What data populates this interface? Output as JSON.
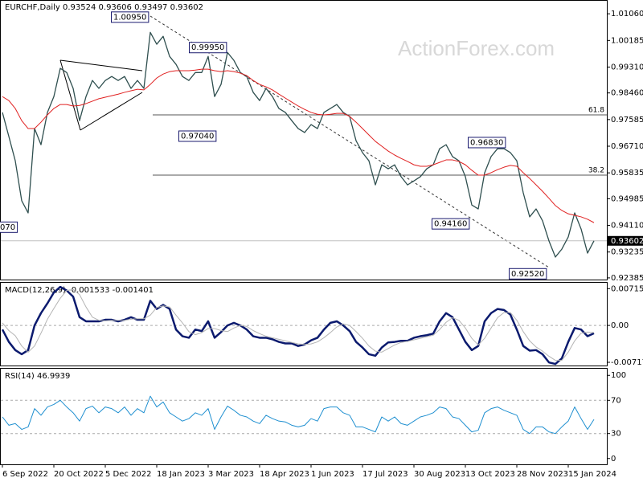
{
  "chart_data": [
    {
      "type": "line",
      "title": "EURCHF,Daily 0.93524 0.93606 0.93497 0.93602",
      "watermark": "ActionForex.com",
      "categories": [
        "6 Sep 2022",
        null,
        null,
        null,
        null,
        null,
        null,
        null,
        "20 Oct 2022",
        null,
        null,
        null,
        null,
        null,
        null,
        null,
        "5 Dec 2022",
        null,
        null,
        null,
        null,
        null,
        null,
        null,
        "18 Jan 2023",
        null,
        null,
        null,
        null,
        null,
        null,
        null,
        "3 Mar 2023",
        null,
        null,
        null,
        null,
        null,
        null,
        null,
        "18 Apr 2023",
        null,
        null,
        null,
        null,
        null,
        null,
        null,
        "1 Jun 2023",
        null,
        null,
        null,
        null,
        null,
        null,
        null,
        "17 Jul 2023",
        null,
        null,
        null,
        null,
        null,
        null,
        null,
        "30 Aug 2023",
        null,
        null,
        null,
        null,
        null,
        null,
        null,
        "13 Oct 2023",
        null,
        null,
        null,
        null,
        null,
        null,
        null,
        "28 Nov 2023",
        null,
        null,
        null,
        null,
        null,
        null,
        null,
        "15 Jan 2024",
        null,
        null,
        null,
        null
      ],
      "series": [
        {
          "color": "#2f4f4f",
          "values": [
            0.9782,
            0.9703,
            0.9623,
            0.9492,
            0.9452,
            0.9729,
            0.9676,
            0.9782,
            0.9834,
            0.9927,
            0.9913,
            0.9861,
            0.9755,
            0.9834,
            0.9887,
            0.9861,
            0.9887,
            0.99,
            0.9887,
            0.99,
            0.9861,
            0.9887,
            0.9861,
            1.0045,
            1.0006,
            1.0032,
            0.9966,
            0.994,
            0.99,
            0.9887,
            0.9913,
            0.9913,
            0.9966,
            0.9834,
            0.9874,
            0.9979,
            0.9953,
            0.9913,
            0.99,
            0.9848,
            0.9821,
            0.9861,
            0.9834,
            0.9795,
            0.9782,
            0.9755,
            0.9729,
            0.9716,
            0.9742,
            0.9729,
            0.9782,
            0.9795,
            0.9808,
            0.9782,
            0.9769,
            0.9689,
            0.965,
            0.9623,
            0.9544,
            0.961,
            0.9597,
            0.961,
            0.9571,
            0.9544,
            0.9557,
            0.9571,
            0.9597,
            0.961,
            0.9663,
            0.9676,
            0.9637,
            0.9623,
            0.9571,
            0.9478,
            0.9465,
            0.9584,
            0.9637,
            0.9663,
            0.9663,
            0.965,
            0.9623,
            0.9518,
            0.9439,
            0.9465,
            0.9426,
            0.936,
            0.9307,
            0.9333,
            0.9373,
            0.9452,
            0.9399,
            0.932,
            0.93602
          ]
        },
        {
          "color": "#e02020",
          "values": [
            0.9834,
            0.9821,
            0.9795,
            0.9755,
            0.9729,
            0.9729,
            0.975,
            0.9774,
            0.9795,
            0.9808,
            0.9808,
            0.9803,
            0.9805,
            0.9811,
            0.9819,
            0.9827,
            0.9832,
            0.9837,
            0.9842,
            0.9848,
            0.9853,
            0.9858,
            0.9856,
            0.9874,
            0.9895,
            0.9908,
            0.9916,
            0.9919,
            0.9919,
            0.9919,
            0.9921,
            0.9924,
            0.9924,
            0.9919,
            0.9916,
            0.9919,
            0.9916,
            0.9911,
            0.9903,
            0.9887,
            0.9874,
            0.9866,
            0.9856,
            0.9842,
            0.9829,
            0.9816,
            0.9803,
            0.9792,
            0.9782,
            0.9776,
            0.9774,
            0.9776,
            0.9779,
            0.9779,
            0.9769,
            0.975,
            0.9729,
            0.9708,
            0.9687,
            0.9671,
            0.9655,
            0.9642,
            0.9631,
            0.9621,
            0.961,
            0.9605,
            0.9605,
            0.961,
            0.9618,
            0.9626,
            0.9626,
            0.9621,
            0.961,
            0.9592,
            0.9576,
            0.9576,
            0.9584,
            0.9594,
            0.9602,
            0.9608,
            0.9605,
            0.9584,
            0.9565,
            0.9544,
            0.9523,
            0.95,
            0.9476,
            0.946,
            0.9449,
            0.9444,
            0.9439,
            0.9431,
            0.942
          ]
        }
      ],
      "ylim": [
        0.9233,
        1.0146
      ],
      "yticks": [
        {
          "value": 1.0106,
          "label": "1.01060"
        },
        {
          "value": 1.00185,
          "label": "1.00185"
        },
        {
          "value": 0.9931,
          "label": "0.99310"
        },
        {
          "value": 0.9846,
          "label": "0.98460"
        },
        {
          "value": 0.97585,
          "label": "0.97585"
        },
        {
          "value": 0.9671,
          "label": "0.96710"
        },
        {
          "value": 0.95835,
          "label": "0.95835"
        },
        {
          "value": 0.94985,
          "label": "0.94985"
        },
        {
          "value": 0.9411,
          "label": "0.94110"
        },
        {
          "value": 0.93235,
          "label": "0.93235"
        },
        {
          "value": 0.92385,
          "label": "0.92385"
        }
      ],
      "last_price": 0.93602,
      "levels": [
        {
          "label": "61.8",
          "value": 0.9774
        },
        {
          "label": "38.2",
          "value": 0.9576
        }
      ],
      "annotations": [
        {
          "label": "1.00950",
          "value": 1.0095
        },
        {
          "label": "0.99950",
          "value": 0.9995
        },
        {
          "label": "0.97040",
          "value": 0.9704
        },
        {
          "label": "0.96830",
          "value": 0.9683
        },
        {
          "label": "0.94160",
          "value": 0.9416
        },
        {
          "label": "0.92520",
          "value": 0.9252
        },
        {
          "label": "070",
          "value": 0.9405
        }
      ]
    },
    {
      "type": "line",
      "title": "MACD(12,26,9) -0.001533 -0.001401",
      "series": [
        {
          "color": "#0b1a6e",
          "values": [
            -0.0008,
            -0.0032,
            -0.0048,
            -0.0056,
            -0.0048,
            0,
            0.0024,
            0.0043,
            0.0064,
            0.0075,
            0.0068,
            0.0056,
            0.0016,
            0.0008,
            0.0008,
            0.0008,
            0.0011,
            0.0011,
            0.0008,
            0.0011,
            0.0016,
            0.0011,
            0.0011,
            0.0048,
            0.0032,
            0.004,
            0.0032,
            -0.0008,
            -0.0021,
            -0.0024,
            -0.0008,
            -0.0011,
            0.0008,
            -0.0024,
            -0.0013,
            0,
            0.0005,
            0,
            -0.0008,
            -0.0021,
            -0.0024,
            -0.0024,
            -0.0027,
            -0.0032,
            -0.0035,
            -0.0035,
            -0.004,
            -0.0037,
            -0.0029,
            -0.0024,
            -0.0008,
            0.0005,
            0.0008,
            0,
            -0.0011,
            -0.0032,
            -0.0043,
            -0.0056,
            -0.0059,
            -0.0043,
            -0.0033,
            -0.0032,
            -0.003,
            -0.003,
            -0.0024,
            -0.0021,
            -0.0019,
            -0.0016,
            0.0008,
            0.0024,
            0.0016,
            -0.0008,
            -0.0032,
            -0.0048,
            -0.004,
            0.0008,
            0.0024,
            0.0032,
            0.003,
            0.0021,
            -0.0008,
            -0.004,
            -0.0049,
            -0.0048,
            -0.0056,
            -0.0072,
            -0.0075,
            -0.0064,
            -0.0032,
            -0.0005,
            -0.0008,
            -0.0021,
            -0.001533
          ]
        },
        {
          "color": "#b4b4b4",
          "values": [
            0.0005,
            -0.001,
            -0.002,
            -0.004,
            -0.0052,
            -0.004,
            -0.0015,
            0.0012,
            0.0033,
            0.0053,
            0.0068,
            0.007,
            0.006,
            0.0036,
            0.0016,
            0.001,
            0.0009,
            0.001,
            0.001,
            0.001,
            0.0012,
            0.0013,
            0.0013,
            0.002,
            0.0035,
            0.0038,
            0.0036,
            0.002,
            0.0005,
            -0.0012,
            -0.0018,
            -0.0014,
            -0.0006,
            -0.0006,
            -0.001,
            -0.0012,
            -0.0005,
            0,
            -0.0002,
            -0.001,
            -0.0016,
            -0.0021,
            -0.0024,
            -0.0027,
            -0.003,
            -0.0033,
            -0.0036,
            -0.0037,
            -0.0036,
            -0.0032,
            -0.0024,
            -0.0014,
            -0.0003,
            0.0003,
            0,
            -0.0012,
            -0.0025,
            -0.004,
            -0.005,
            -0.0052,
            -0.0045,
            -0.0038,
            -0.0033,
            -0.0031,
            -0.0028,
            -0.0025,
            -0.0022,
            -0.0019,
            -0.0008,
            0.0006,
            0.0015,
            0.001,
            -0.0005,
            -0.0025,
            -0.0038,
            -0.0025,
            -0.0005,
            0.0015,
            0.0025,
            0.0025,
            0.001,
            -0.0012,
            -0.003,
            -0.0042,
            -0.005,
            -0.006,
            -0.0068,
            -0.0068,
            -0.0052,
            -0.003,
            -0.0015,
            -0.0013,
            -0.001401
          ]
        }
      ],
      "ylim": [
        -0.0078,
        0.0083
      ],
      "yticks": [
        0.007159,
        {
          "value": 0,
          "label": "0.00"
        },
        -0.007173
      ],
      "levels": [
        0
      ]
    },
    {
      "type": "line",
      "title": "RSI(14) 46.9939",
      "series": [
        {
          "color": "#1e8fd0",
          "values": [
            50,
            40,
            42,
            35,
            38,
            60,
            52,
            62,
            65,
            70,
            62,
            55,
            45,
            60,
            63,
            55,
            62,
            60,
            55,
            62,
            52,
            60,
            55,
            75,
            62,
            68,
            55,
            50,
            45,
            48,
            55,
            52,
            60,
            35,
            50,
            63,
            58,
            52,
            50,
            45,
            42,
            52,
            48,
            45,
            44,
            40,
            38,
            40,
            48,
            45,
            60,
            62,
            62,
            55,
            52,
            38,
            38,
            35,
            32,
            50,
            45,
            50,
            42,
            40,
            45,
            50,
            52,
            55,
            62,
            60,
            50,
            48,
            40,
            32,
            34,
            55,
            60,
            62,
            58,
            55,
            52,
            35,
            30,
            38,
            38,
            32,
            30,
            38,
            45,
            62,
            48,
            35,
            46.9939
          ]
        }
      ],
      "ylim": [
        -7,
        107
      ],
      "yticks": [
        100,
        70,
        30,
        0
      ],
      "levels": [
        70,
        30
      ]
    }
  ]
}
